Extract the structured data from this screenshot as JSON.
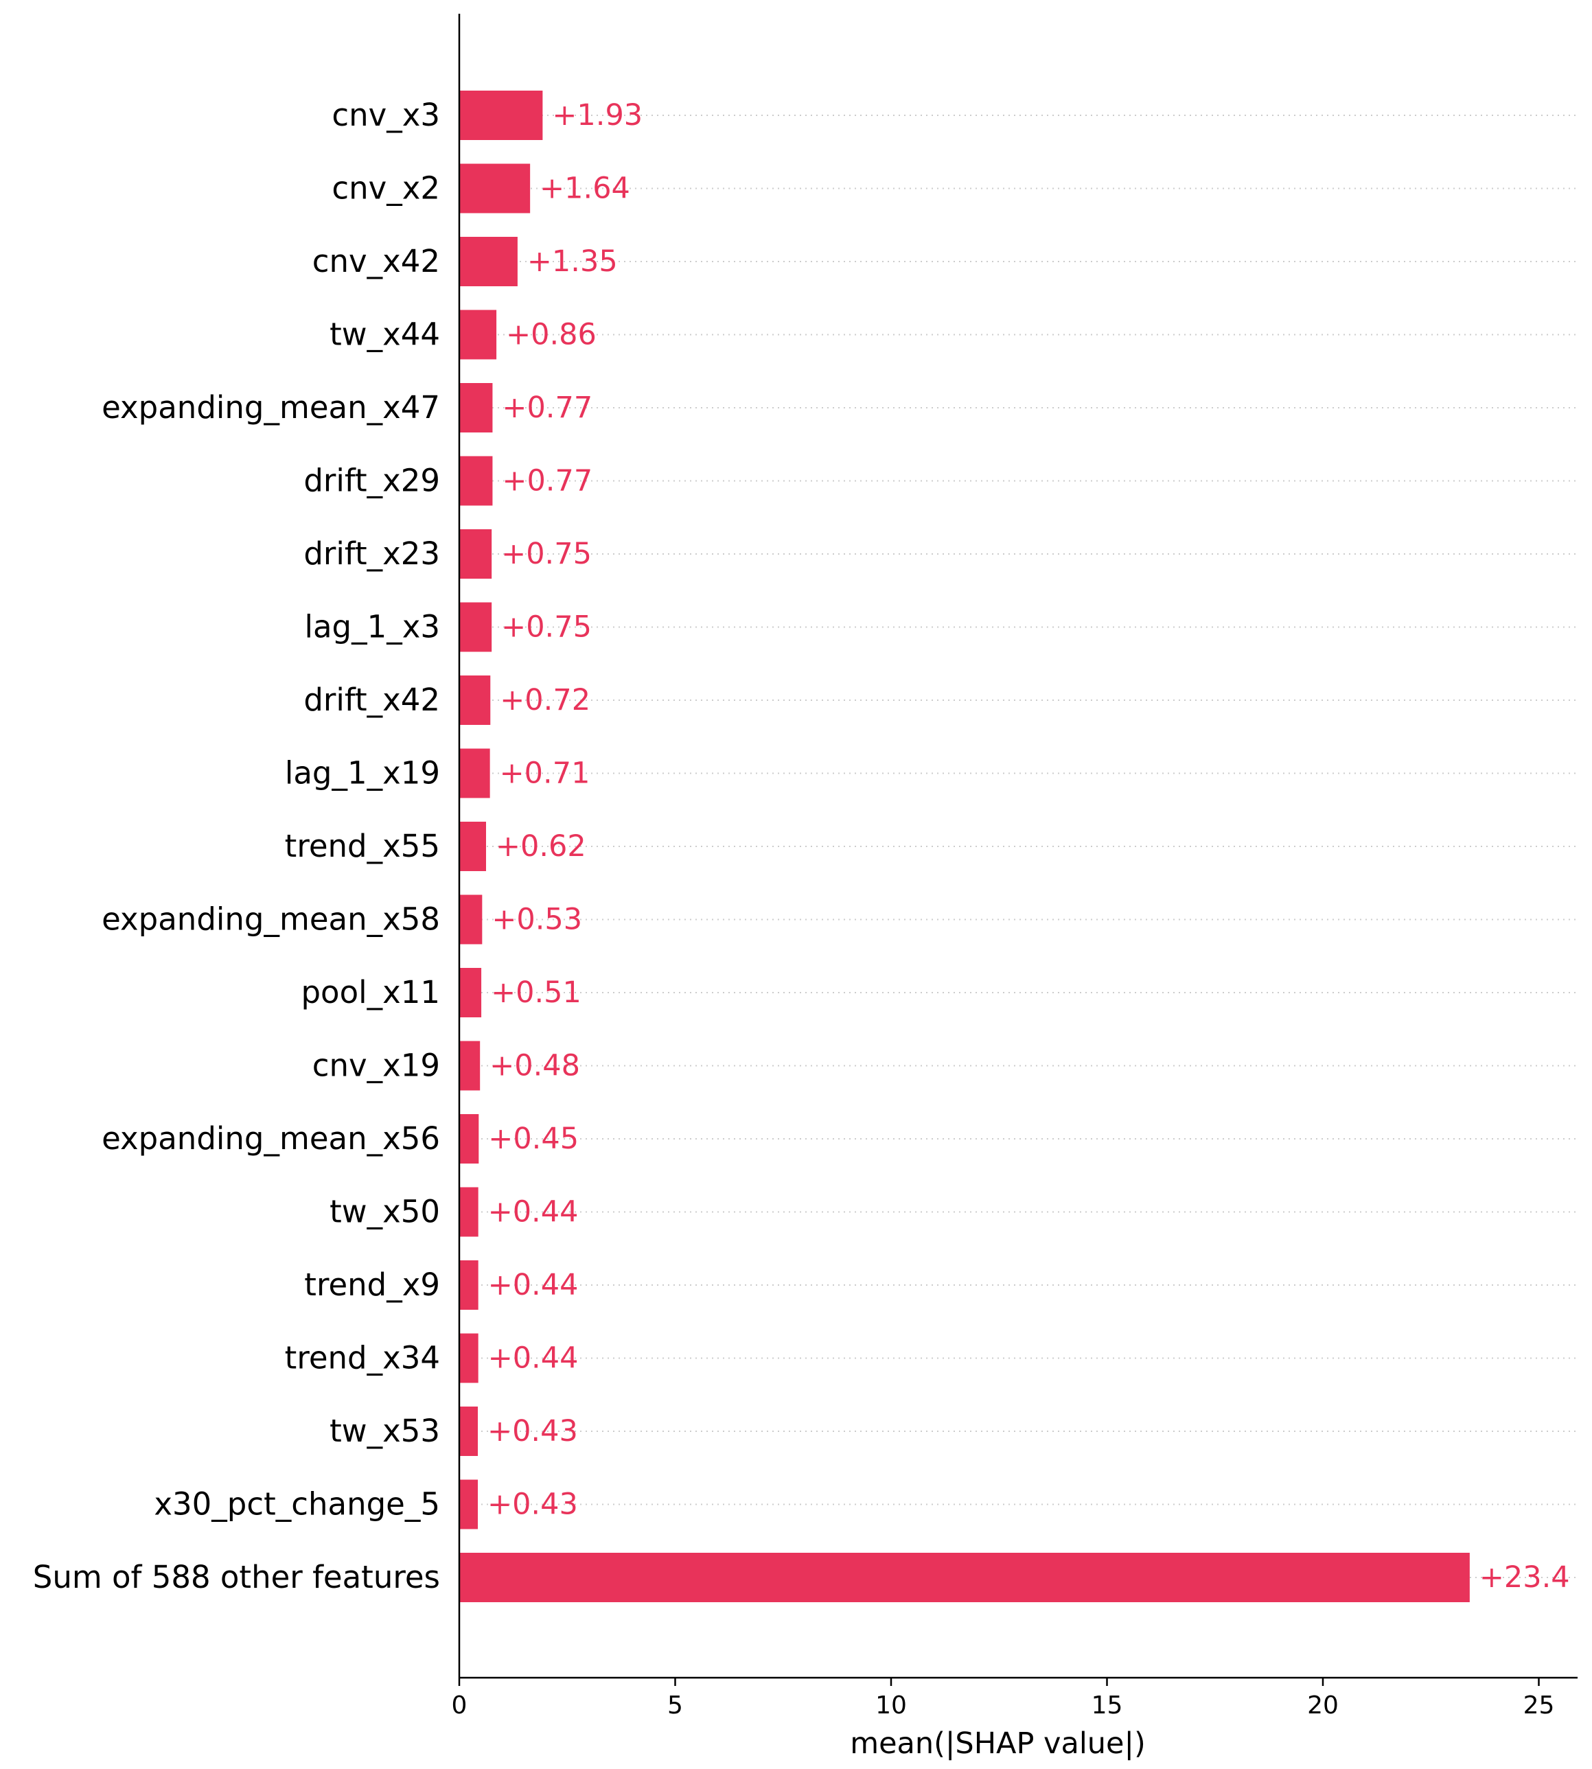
{
  "chart_data": {
    "type": "bar",
    "orientation": "horizontal",
    "categories": [
      "cnv_x3",
      "cnv_x2",
      "cnv_x42",
      "tw_x44",
      "expanding_mean_x47",
      "drift_x29",
      "drift_x23",
      "lag_1_x3",
      "drift_x42",
      "lag_1_x19",
      "trend_x55",
      "expanding_mean_x58",
      "pool_x11",
      "cnv_x19",
      "expanding_mean_x56",
      "tw_x50",
      "trend_x9",
      "trend_x34",
      "tw_x53",
      "x30_pct_change_5",
      "Sum of 588 other features"
    ],
    "values": [
      1.93,
      1.64,
      1.35,
      0.86,
      0.77,
      0.77,
      0.75,
      0.75,
      0.72,
      0.71,
      0.62,
      0.53,
      0.51,
      0.48,
      0.45,
      0.44,
      0.44,
      0.44,
      0.43,
      0.43,
      23.4
    ],
    "value_labels": [
      "+1.93",
      "+1.64",
      "+1.35",
      "+0.86",
      "+0.77",
      "+0.77",
      "+0.75",
      "+0.75",
      "+0.72",
      "+0.71",
      "+0.62",
      "+0.53",
      "+0.51",
      "+0.48",
      "+0.45",
      "+0.44",
      "+0.44",
      "+0.44",
      "+0.43",
      "+0.43",
      "+23.4"
    ],
    "xticks": [
      0,
      5,
      10,
      15,
      20,
      25
    ],
    "xtick_labels": [
      "0",
      "5",
      "10",
      "15",
      "20",
      "25"
    ],
    "xlim": [
      0,
      25.9
    ],
    "xlabel": "mean(|SHAP value|)",
    "ylabel": "",
    "title": "",
    "grid": "dotted horizontal lines per row",
    "colors": {
      "bar": "#e8335a",
      "label": "#e8335a",
      "axis": "#000000",
      "grid": "#cccccc"
    }
  }
}
